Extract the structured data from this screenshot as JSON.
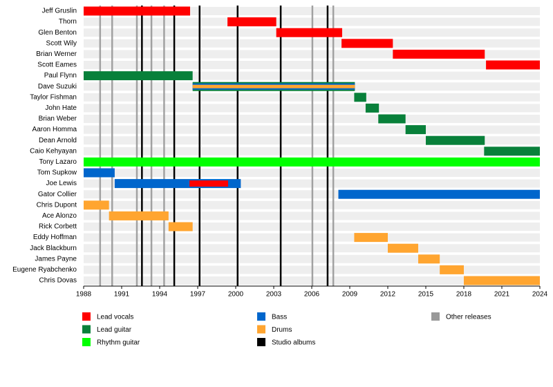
{
  "chart_data": {
    "type": "timeline",
    "categories": [
      "Jeff Gruslin",
      "Thorn",
      "Glen Benton",
      "Scott Wily",
      "Brian Werner",
      "Scott Eames",
      "Paul Flynn",
      "Dave Suzuki",
      "Taylor Fishman",
      "John Hate",
      "Brian Weber",
      "Aaron Homma",
      "Dean Arnold",
      "Caio Kehyayan",
      "Tony Lazaro",
      "Tom Supkow",
      "Joe Lewis",
      "Gator Collier",
      "Chris Dupont",
      "Ace Alonzo",
      "Rick Corbett",
      "Eddy Hoffman",
      "Jack Blackburn",
      "James Payne",
      "Eugene Ryabchenko",
      "Chris Dovas"
    ],
    "series": [
      {
        "name": "Lead vocals",
        "color": "#ff0000",
        "values": [
          [
            1988,
            1996.4
          ],
          [
            1999.35,
            2003.2
          ],
          [
            2003.2,
            2008.4
          ],
          [
            2008.35,
            2012.4
          ],
          [
            2012.4,
            2019.65
          ],
          [
            2019.75,
            2024
          ],
          null,
          null,
          null,
          null,
          null,
          null,
          null,
          null,
          null,
          null,
          [
            1996.35,
            1999.4
          ],
          null,
          null,
          null,
          null,
          null,
          null,
          null,
          null,
          null
        ]
      },
      {
        "name": "Lead guitar",
        "color": "#08803a",
        "values": [
          null,
          null,
          null,
          null,
          null,
          null,
          [
            1988,
            1996.6
          ],
          [
            1996.6,
            2009.4
          ],
          [
            2009.35,
            2010.3
          ],
          [
            2010.25,
            2011.3
          ],
          [
            2011.25,
            2013.4
          ],
          [
            2013.4,
            2015
          ],
          [
            2015,
            2019.65
          ],
          [
            2019.6,
            2024
          ],
          null,
          null,
          null,
          null,
          null,
          null,
          null,
          null,
          null,
          null,
          null,
          null
        ]
      },
      {
        "name": "Rhythm guitar",
        "color": "#00ff00",
        "values": [
          null,
          null,
          null,
          null,
          null,
          null,
          null,
          null,
          null,
          null,
          null,
          null,
          null,
          null,
          [
            1988,
            2024
          ],
          null,
          null,
          null,
          null,
          null,
          null,
          null,
          null,
          null,
          null,
          null
        ]
      },
      {
        "name": "Bass",
        "color": "#0066cc",
        "values": [
          null,
          null,
          null,
          null,
          null,
          null,
          null,
          [
            1996.6,
            2009.4
          ],
          null,
          null,
          null,
          null,
          null,
          null,
          null,
          [
            1988,
            1990.45
          ],
          [
            1990.45,
            2000.4
          ],
          [
            2008.1,
            2024
          ],
          null,
          null,
          null,
          null,
          null,
          null,
          null,
          null
        ]
      },
      {
        "name": "Drums",
        "color": "#ffa530",
        "values": [
          null,
          null,
          null,
          null,
          null,
          null,
          null,
          [
            1996.6,
            2009.4
          ],
          null,
          null,
          null,
          null,
          null,
          null,
          null,
          null,
          null,
          null,
          [
            1988,
            1990
          ],
          [
            1990,
            1994.7
          ],
          [
            1994.7,
            1996.6
          ],
          [
            2009.35,
            2012
          ],
          [
            2012,
            2014.4
          ],
          [
            2014.4,
            2016.1
          ],
          [
            2016.1,
            2018
          ],
          [
            2018,
            2024
          ]
        ]
      }
    ],
    "markers": [
      {
        "name": "Studio albums",
        "color": "#000000",
        "values": [
          1992.6,
          1995.15,
          1997.15,
          2000.15,
          2003.55,
          2007.25
        ]
      },
      {
        "name": "Other releases",
        "color": "#999999",
        "values": [
          1989.3,
          1990.25,
          1992.2,
          1993.35,
          1994.35,
          2006.05,
          2007.7
        ]
      }
    ],
    "xlim": [
      1988,
      2024
    ],
    "xticks": [
      1988,
      1991,
      1994,
      1997,
      2000,
      2003,
      2006,
      2009,
      2012,
      2015,
      2018,
      2021,
      2024
    ]
  }
}
